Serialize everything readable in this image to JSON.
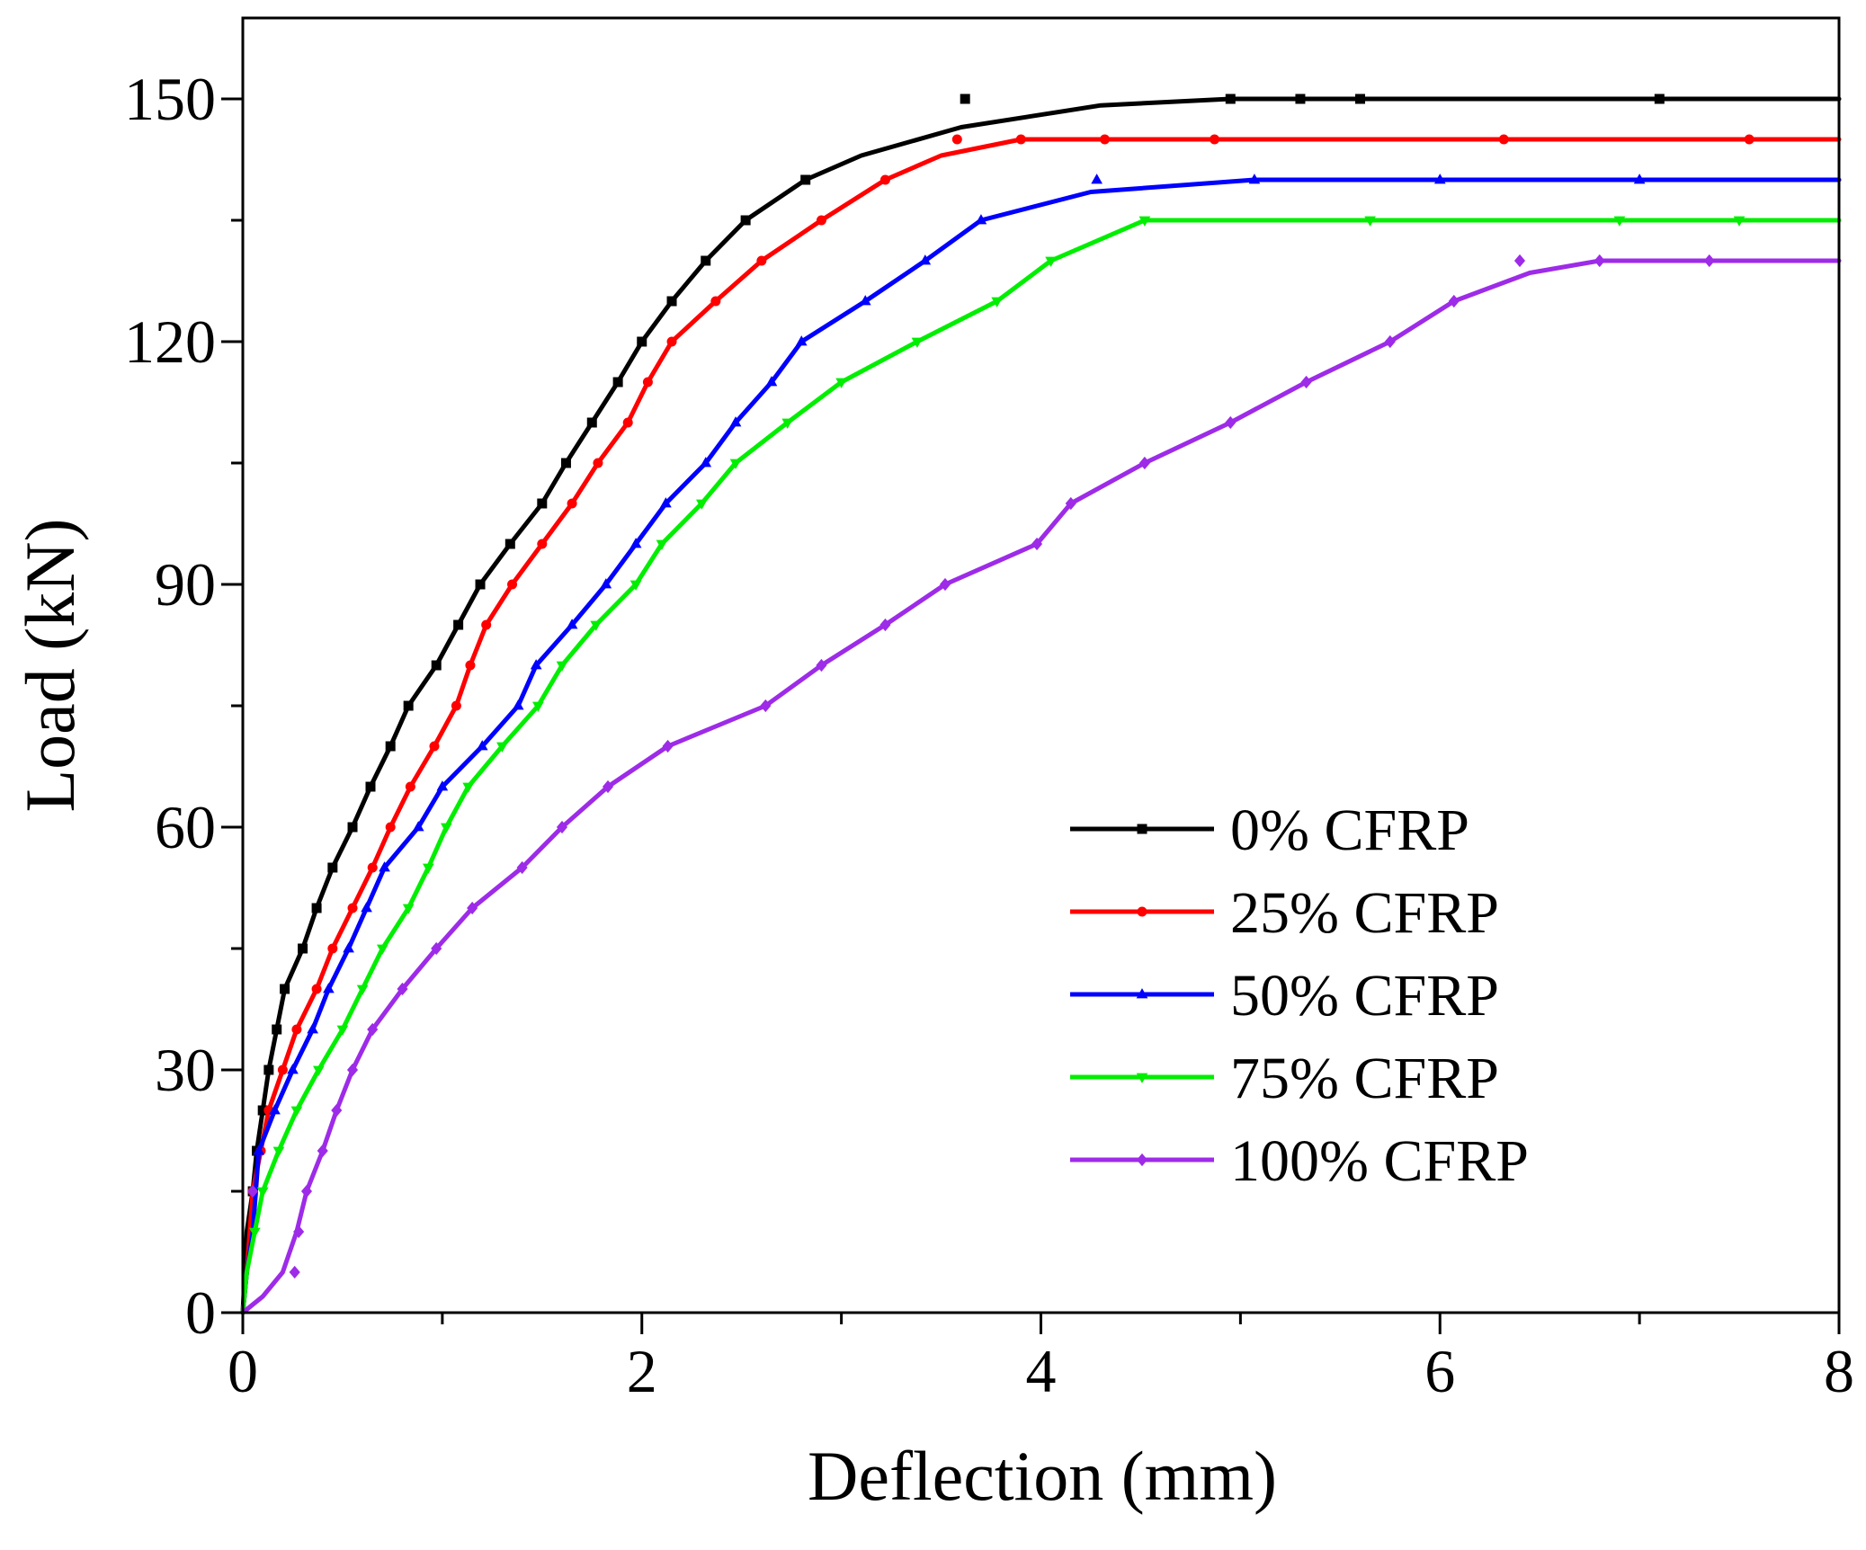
{
  "chart_data": {
    "type": "line",
    "title": "",
    "xlabel": "Deflection (mm)",
    "ylabel": "Load (kN)",
    "xlim": [
      0,
      8
    ],
    "ylim": [
      0,
      160
    ],
    "x_ticks": [
      0,
      2,
      4,
      6,
      8
    ],
    "y_ticks": [
      0,
      30,
      60,
      90,
      120,
      150
    ],
    "x_tick_labels": [
      "0",
      "2",
      "4",
      "6",
      "8"
    ],
    "y_tick_labels": [
      "0",
      "30",
      "60",
      "90",
      "120",
      "150"
    ],
    "x_minor_step": 1,
    "y_minor_step": 15,
    "grid": false,
    "legend_position": "bottom-right",
    "series": [
      {
        "name": "0% CFRP",
        "color": "#000000",
        "marker": "square",
        "points": [
          [
            0,
            0
          ],
          [
            0.02,
            10
          ],
          [
            0.05,
            15
          ],
          [
            0.07,
            20
          ],
          [
            0.1,
            25
          ],
          [
            0.13,
            30
          ],
          [
            0.17,
            35
          ],
          [
            0.21,
            40
          ],
          [
            0.3,
            45
          ],
          [
            0.37,
            50
          ],
          [
            0.45,
            55
          ],
          [
            0.55,
            60
          ],
          [
            0.64,
            65
          ],
          [
            0.74,
            70
          ],
          [
            0.83,
            75
          ],
          [
            0.97,
            80
          ],
          [
            1.08,
            85
          ],
          [
            1.19,
            90
          ],
          [
            1.34,
            95
          ],
          [
            1.5,
            100
          ],
          [
            1.62,
            105
          ],
          [
            1.75,
            110
          ],
          [
            1.88,
            115
          ],
          [
            2.0,
            120
          ],
          [
            2.15,
            125
          ],
          [
            2.32,
            130
          ],
          [
            2.52,
            135
          ],
          [
            2.82,
            140
          ],
          [
            3.1,
            143
          ],
          [
            3.6,
            146.5
          ],
          [
            4.3,
            149.2
          ],
          [
            4.95,
            150
          ],
          [
            5.3,
            150
          ],
          [
            5.6,
            150
          ],
          [
            7.1,
            150
          ],
          [
            8.0,
            150
          ]
        ],
        "markers": [
          [
            0.05,
            15
          ],
          [
            0.07,
            20
          ],
          [
            0.1,
            25
          ],
          [
            0.13,
            30
          ],
          [
            0.17,
            35
          ],
          [
            0.21,
            40
          ],
          [
            0.3,
            45
          ],
          [
            0.37,
            50
          ],
          [
            0.45,
            55
          ],
          [
            0.55,
            60
          ],
          [
            0.64,
            65
          ],
          [
            0.74,
            70
          ],
          [
            0.83,
            75
          ],
          [
            0.97,
            80
          ],
          [
            1.08,
            85
          ],
          [
            1.19,
            90
          ],
          [
            1.34,
            95
          ],
          [
            1.5,
            100
          ],
          [
            1.62,
            105
          ],
          [
            1.75,
            110
          ],
          [
            1.88,
            115
          ],
          [
            2.0,
            120
          ],
          [
            2.15,
            125
          ],
          [
            2.32,
            130
          ],
          [
            2.52,
            135
          ],
          [
            2.82,
            140
          ],
          [
            3.62,
            150
          ],
          [
            4.95,
            150
          ],
          [
            5.3,
            150
          ],
          [
            5.6,
            150
          ],
          [
            7.1,
            150
          ]
        ]
      },
      {
        "name": "25% CFRP",
        "color": "#ff0000",
        "marker": "circle",
        "points": [
          [
            0,
            0
          ],
          [
            0.02,
            5
          ],
          [
            0.05,
            15
          ],
          [
            0.09,
            20
          ],
          [
            0.13,
            25
          ],
          [
            0.2,
            30
          ],
          [
            0.27,
            35
          ],
          [
            0.37,
            40
          ],
          [
            0.45,
            45
          ],
          [
            0.55,
            50
          ],
          [
            0.65,
            55
          ],
          [
            0.74,
            60
          ],
          [
            0.84,
            65
          ],
          [
            0.96,
            70
          ],
          [
            1.07,
            75
          ],
          [
            1.14,
            80
          ],
          [
            1.22,
            85
          ],
          [
            1.35,
            90
          ],
          [
            1.5,
            95
          ],
          [
            1.65,
            100
          ],
          [
            1.78,
            105
          ],
          [
            1.93,
            110
          ],
          [
            2.03,
            115
          ],
          [
            2.15,
            120
          ],
          [
            2.37,
            125
          ],
          [
            2.6,
            130
          ],
          [
            2.9,
            135
          ],
          [
            3.22,
            140
          ],
          [
            3.5,
            143
          ],
          [
            3.9,
            145
          ],
          [
            4.32,
            145
          ],
          [
            4.87,
            145
          ],
          [
            6.32,
            145
          ],
          [
            7.55,
            145
          ],
          [
            8.0,
            145
          ]
        ],
        "markers": [
          [
            0.05,
            15
          ],
          [
            0.09,
            20
          ],
          [
            0.13,
            25
          ],
          [
            0.2,
            30
          ],
          [
            0.27,
            35
          ],
          [
            0.37,
            40
          ],
          [
            0.45,
            45
          ],
          [
            0.55,
            50
          ],
          [
            0.65,
            55
          ],
          [
            0.74,
            60
          ],
          [
            0.84,
            65
          ],
          [
            0.96,
            70
          ],
          [
            1.07,
            75
          ],
          [
            1.14,
            80
          ],
          [
            1.22,
            85
          ],
          [
            1.35,
            90
          ],
          [
            1.5,
            95
          ],
          [
            1.65,
            100
          ],
          [
            1.78,
            105
          ],
          [
            1.93,
            110
          ],
          [
            2.03,
            115
          ],
          [
            2.15,
            120
          ],
          [
            2.37,
            125
          ],
          [
            2.6,
            130
          ],
          [
            2.9,
            135
          ],
          [
            3.22,
            140
          ],
          [
            3.58,
            145
          ],
          [
            3.9,
            145
          ],
          [
            4.32,
            145
          ],
          [
            4.87,
            145
          ],
          [
            6.32,
            145
          ],
          [
            7.55,
            145
          ]
        ]
      },
      {
        "name": "50% CFRP",
        "color": "#0000ff",
        "marker": "triangle",
        "points": [
          [
            0,
            0
          ],
          [
            0.02,
            5
          ],
          [
            0.05,
            10
          ],
          [
            0.08,
            20
          ],
          [
            0.16,
            25
          ],
          [
            0.25,
            30
          ],
          [
            0.35,
            35
          ],
          [
            0.43,
            40
          ],
          [
            0.53,
            45
          ],
          [
            0.62,
            50
          ],
          [
            0.71,
            55
          ],
          [
            0.88,
            60
          ],
          [
            1.0,
            65
          ],
          [
            1.2,
            70
          ],
          [
            1.38,
            75
          ],
          [
            1.47,
            80
          ],
          [
            1.65,
            85
          ],
          [
            1.82,
            90
          ],
          [
            1.97,
            95
          ],
          [
            2.12,
            100
          ],
          [
            2.32,
            105
          ],
          [
            2.47,
            110
          ],
          [
            2.65,
            115
          ],
          [
            2.8,
            120
          ],
          [
            3.12,
            125
          ],
          [
            3.42,
            130
          ],
          [
            3.7,
            135
          ],
          [
            4.25,
            138.5
          ],
          [
            5.07,
            140
          ],
          [
            6.0,
            140
          ],
          [
            7.0,
            140
          ],
          [
            8.0,
            140
          ]
        ],
        "markers": [
          [
            0.08,
            20
          ],
          [
            0.16,
            25
          ],
          [
            0.25,
            30
          ],
          [
            0.35,
            35
          ],
          [
            0.43,
            40
          ],
          [
            0.53,
            45
          ],
          [
            0.62,
            50
          ],
          [
            0.71,
            55
          ],
          [
            0.88,
            60
          ],
          [
            1.0,
            65
          ],
          [
            1.2,
            70
          ],
          [
            1.38,
            75
          ],
          [
            1.47,
            80
          ],
          [
            1.65,
            85
          ],
          [
            1.82,
            90
          ],
          [
            1.97,
            95
          ],
          [
            2.12,
            100
          ],
          [
            2.32,
            105
          ],
          [
            2.47,
            110
          ],
          [
            2.65,
            115
          ],
          [
            2.8,
            120
          ],
          [
            3.12,
            125
          ],
          [
            3.42,
            130
          ],
          [
            3.7,
            135
          ],
          [
            4.28,
            140
          ],
          [
            5.07,
            140
          ],
          [
            6.0,
            140
          ],
          [
            7.0,
            140
          ]
        ]
      },
      {
        "name": "75% CFRP",
        "color": "#00ee00",
        "marker": "triangle-down",
        "points": [
          [
            0,
            0
          ],
          [
            0.02,
            5
          ],
          [
            0.06,
            10
          ],
          [
            0.1,
            15
          ],
          [
            0.18,
            20
          ],
          [
            0.27,
            25
          ],
          [
            0.38,
            30
          ],
          [
            0.5,
            35
          ],
          [
            0.6,
            40
          ],
          [
            0.7,
            45
          ],
          [
            0.83,
            50
          ],
          [
            0.93,
            55
          ],
          [
            1.02,
            60
          ],
          [
            1.13,
            65
          ],
          [
            1.3,
            70
          ],
          [
            1.48,
            75
          ],
          [
            1.6,
            80
          ],
          [
            1.77,
            85
          ],
          [
            1.97,
            90
          ],
          [
            2.1,
            95
          ],
          [
            2.3,
            100
          ],
          [
            2.47,
            105
          ],
          [
            2.73,
            110
          ],
          [
            3.0,
            115
          ],
          [
            3.38,
            120
          ],
          [
            3.78,
            125
          ],
          [
            4.05,
            130
          ],
          [
            4.52,
            135
          ],
          [
            5.65,
            135
          ],
          [
            6.9,
            135
          ],
          [
            7.5,
            135
          ],
          [
            8.0,
            135
          ]
        ],
        "markers": [
          [
            0.06,
            10
          ],
          [
            0.1,
            15
          ],
          [
            0.18,
            20
          ],
          [
            0.27,
            25
          ],
          [
            0.38,
            30
          ],
          [
            0.5,
            35
          ],
          [
            0.6,
            40
          ],
          [
            0.7,
            45
          ],
          [
            0.83,
            50
          ],
          [
            0.93,
            55
          ],
          [
            1.02,
            60
          ],
          [
            1.13,
            65
          ],
          [
            1.3,
            70
          ],
          [
            1.48,
            75
          ],
          [
            1.6,
            80
          ],
          [
            1.77,
            85
          ],
          [
            1.97,
            90
          ],
          [
            2.1,
            95
          ],
          [
            2.3,
            100
          ],
          [
            2.47,
            105
          ],
          [
            2.73,
            110
          ],
          [
            3.0,
            115
          ],
          [
            3.38,
            120
          ],
          [
            3.78,
            125
          ],
          [
            4.05,
            130
          ],
          [
            4.52,
            135
          ],
          [
            5.65,
            135
          ],
          [
            6.9,
            135
          ],
          [
            7.5,
            135
          ]
        ]
      },
      {
        "name": "100% CFRP",
        "color": "#9d2be8",
        "marker": "diamond",
        "points": [
          [
            0,
            0
          ],
          [
            0.1,
            2
          ],
          [
            0.2,
            5
          ],
          [
            0.27,
            10
          ],
          [
            0.32,
            15
          ],
          [
            0.4,
            20
          ],
          [
            0.47,
            25
          ],
          [
            0.55,
            30
          ],
          [
            0.65,
            35
          ],
          [
            0.8,
            40
          ],
          [
            0.97,
            45
          ],
          [
            1.15,
            50
          ],
          [
            1.4,
            55
          ],
          [
            1.6,
            60
          ],
          [
            1.83,
            65
          ],
          [
            2.13,
            70
          ],
          [
            2.62,
            75
          ],
          [
            2.9,
            80
          ],
          [
            3.22,
            85
          ],
          [
            3.52,
            90
          ],
          [
            3.98,
            95
          ],
          [
            4.15,
            100
          ],
          [
            4.52,
            105
          ],
          [
            4.95,
            110
          ],
          [
            5.33,
            115
          ],
          [
            5.75,
            120
          ],
          [
            6.07,
            125
          ],
          [
            6.45,
            128.5
          ],
          [
            6.8,
            130
          ],
          [
            7.35,
            130
          ],
          [
            8.0,
            130
          ]
        ],
        "markers": [
          [
            0.05,
            15
          ],
          [
            0.26,
            5
          ],
          [
            0.28,
            10
          ],
          [
            0.32,
            15
          ],
          [
            0.4,
            20
          ],
          [
            0.47,
            25
          ],
          [
            0.55,
            30
          ],
          [
            0.65,
            35
          ],
          [
            0.8,
            40
          ],
          [
            0.97,
            45
          ],
          [
            1.15,
            50
          ],
          [
            1.4,
            55
          ],
          [
            1.6,
            60
          ],
          [
            1.83,
            65
          ],
          [
            2.13,
            70
          ],
          [
            2.62,
            75
          ],
          [
            2.9,
            80
          ],
          [
            3.22,
            85
          ],
          [
            3.52,
            90
          ],
          [
            3.98,
            95
          ],
          [
            4.15,
            100
          ],
          [
            4.52,
            105
          ],
          [
            4.95,
            110
          ],
          [
            5.33,
            115
          ],
          [
            5.75,
            120
          ],
          [
            6.07,
            125
          ],
          [
            6.4,
            130
          ],
          [
            6.8,
            130
          ],
          [
            7.35,
            130
          ]
        ]
      }
    ]
  }
}
